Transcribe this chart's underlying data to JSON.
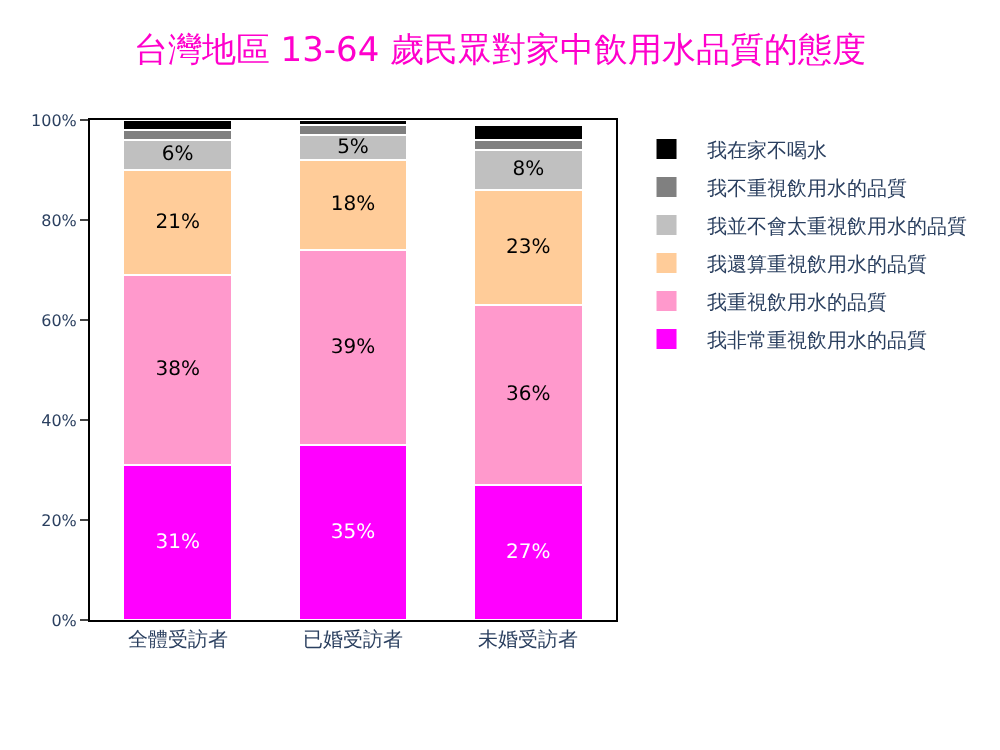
{
  "chart_data": {
    "type": "bar",
    "title": "台灣地區 13-64 歲民眾對家中飲用水品質的態度",
    "categories": [
      "全體受訪者",
      "已婚受訪者",
      "未婚受訪者"
    ],
    "stacked": true,
    "series": [
      {
        "name": "我非常重視飲用水的品質",
        "color": "#ff00ff",
        "values": [
          31,
          35,
          27
        ],
        "value_labels": [
          "31%",
          "35%",
          "27%"
        ]
      },
      {
        "name": "我重視飲用水的品質",
        "color": "#ff99cc",
        "values": [
          38,
          39,
          36
        ],
        "value_labels": [
          "38%",
          "39%",
          "36%"
        ]
      },
      {
        "name": "我還算重視飲用水的品質",
        "color": "#ffcc99",
        "values": [
          21,
          18,
          23
        ],
        "value_labels": [
          "21%",
          "18%",
          "23%"
        ]
      },
      {
        "name": "我並不會太重視飲用水的品質",
        "color": "#c0c0c0",
        "values": [
          6,
          5,
          8
        ],
        "value_labels": [
          "6%",
          "5%",
          "8%"
        ]
      },
      {
        "name": "我不重視飲用水的品質",
        "color": "#808080",
        "values": [
          2,
          2,
          2
        ]
      },
      {
        "name": "我在家不喝水",
        "color": "#000000",
        "values": [
          2,
          1,
          3
        ]
      }
    ],
    "ylim": [
      0,
      100
    ],
    "yticks": [
      {
        "value": 0,
        "label": "0%"
      },
      {
        "value": 20,
        "label": "20%"
      },
      {
        "value": 40,
        "label": "40%"
      },
      {
        "value": 60,
        "label": "60%"
      },
      {
        "value": 80,
        "label": "80%"
      },
      {
        "value": 100,
        "label": "100%"
      }
    ],
    "legend": "right"
  }
}
